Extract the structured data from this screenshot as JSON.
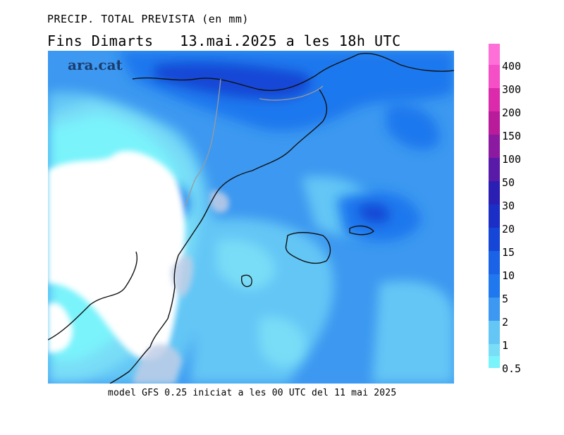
{
  "header": {
    "title_line1": "PRECIP. TOTAL PREVISTA (en mm)",
    "title_line2": "Fins Dimarts   13.mai.2025 a les 18h UTC"
  },
  "footer": {
    "model_info": "model GFS 0.25 iniciat a les 00 UTC del 11 mai 2025"
  },
  "watermark": {
    "text": "ara.cat"
  },
  "legend": {
    "items": [
      {
        "label": "0.5",
        "color": "#7af3fb"
      },
      {
        "label": "1",
        "color": "#79ddf7"
      },
      {
        "label": "2",
        "color": "#64c6f5"
      },
      {
        "label": "5",
        "color": "#3c98f0"
      },
      {
        "label": "10",
        "color": "#1f78ee"
      },
      {
        "label": "15",
        "color": "#1a62e6"
      },
      {
        "label": "20",
        "color": "#1546d6"
      },
      {
        "label": "30",
        "color": "#1b2fc7"
      },
      {
        "label": "50",
        "color": "#2a1eb3"
      },
      {
        "label": "100",
        "color": "#5a1aa8"
      },
      {
        "label": "150",
        "color": "#8c1aa0"
      },
      {
        "label": "200",
        "color": "#b81c9b"
      },
      {
        "label": "300",
        "color": "#dc2aad"
      },
      {
        "label": "400",
        "color": "#f54fc7"
      },
      {
        "label": "",
        "color": "#ff6fd8"
      }
    ]
  },
  "map": {
    "dry_area_color": "#ffffff",
    "sea_tint_color": "#c0cde6",
    "coastline_color": "#111111",
    "border_color": "#9a9aa0"
  }
}
